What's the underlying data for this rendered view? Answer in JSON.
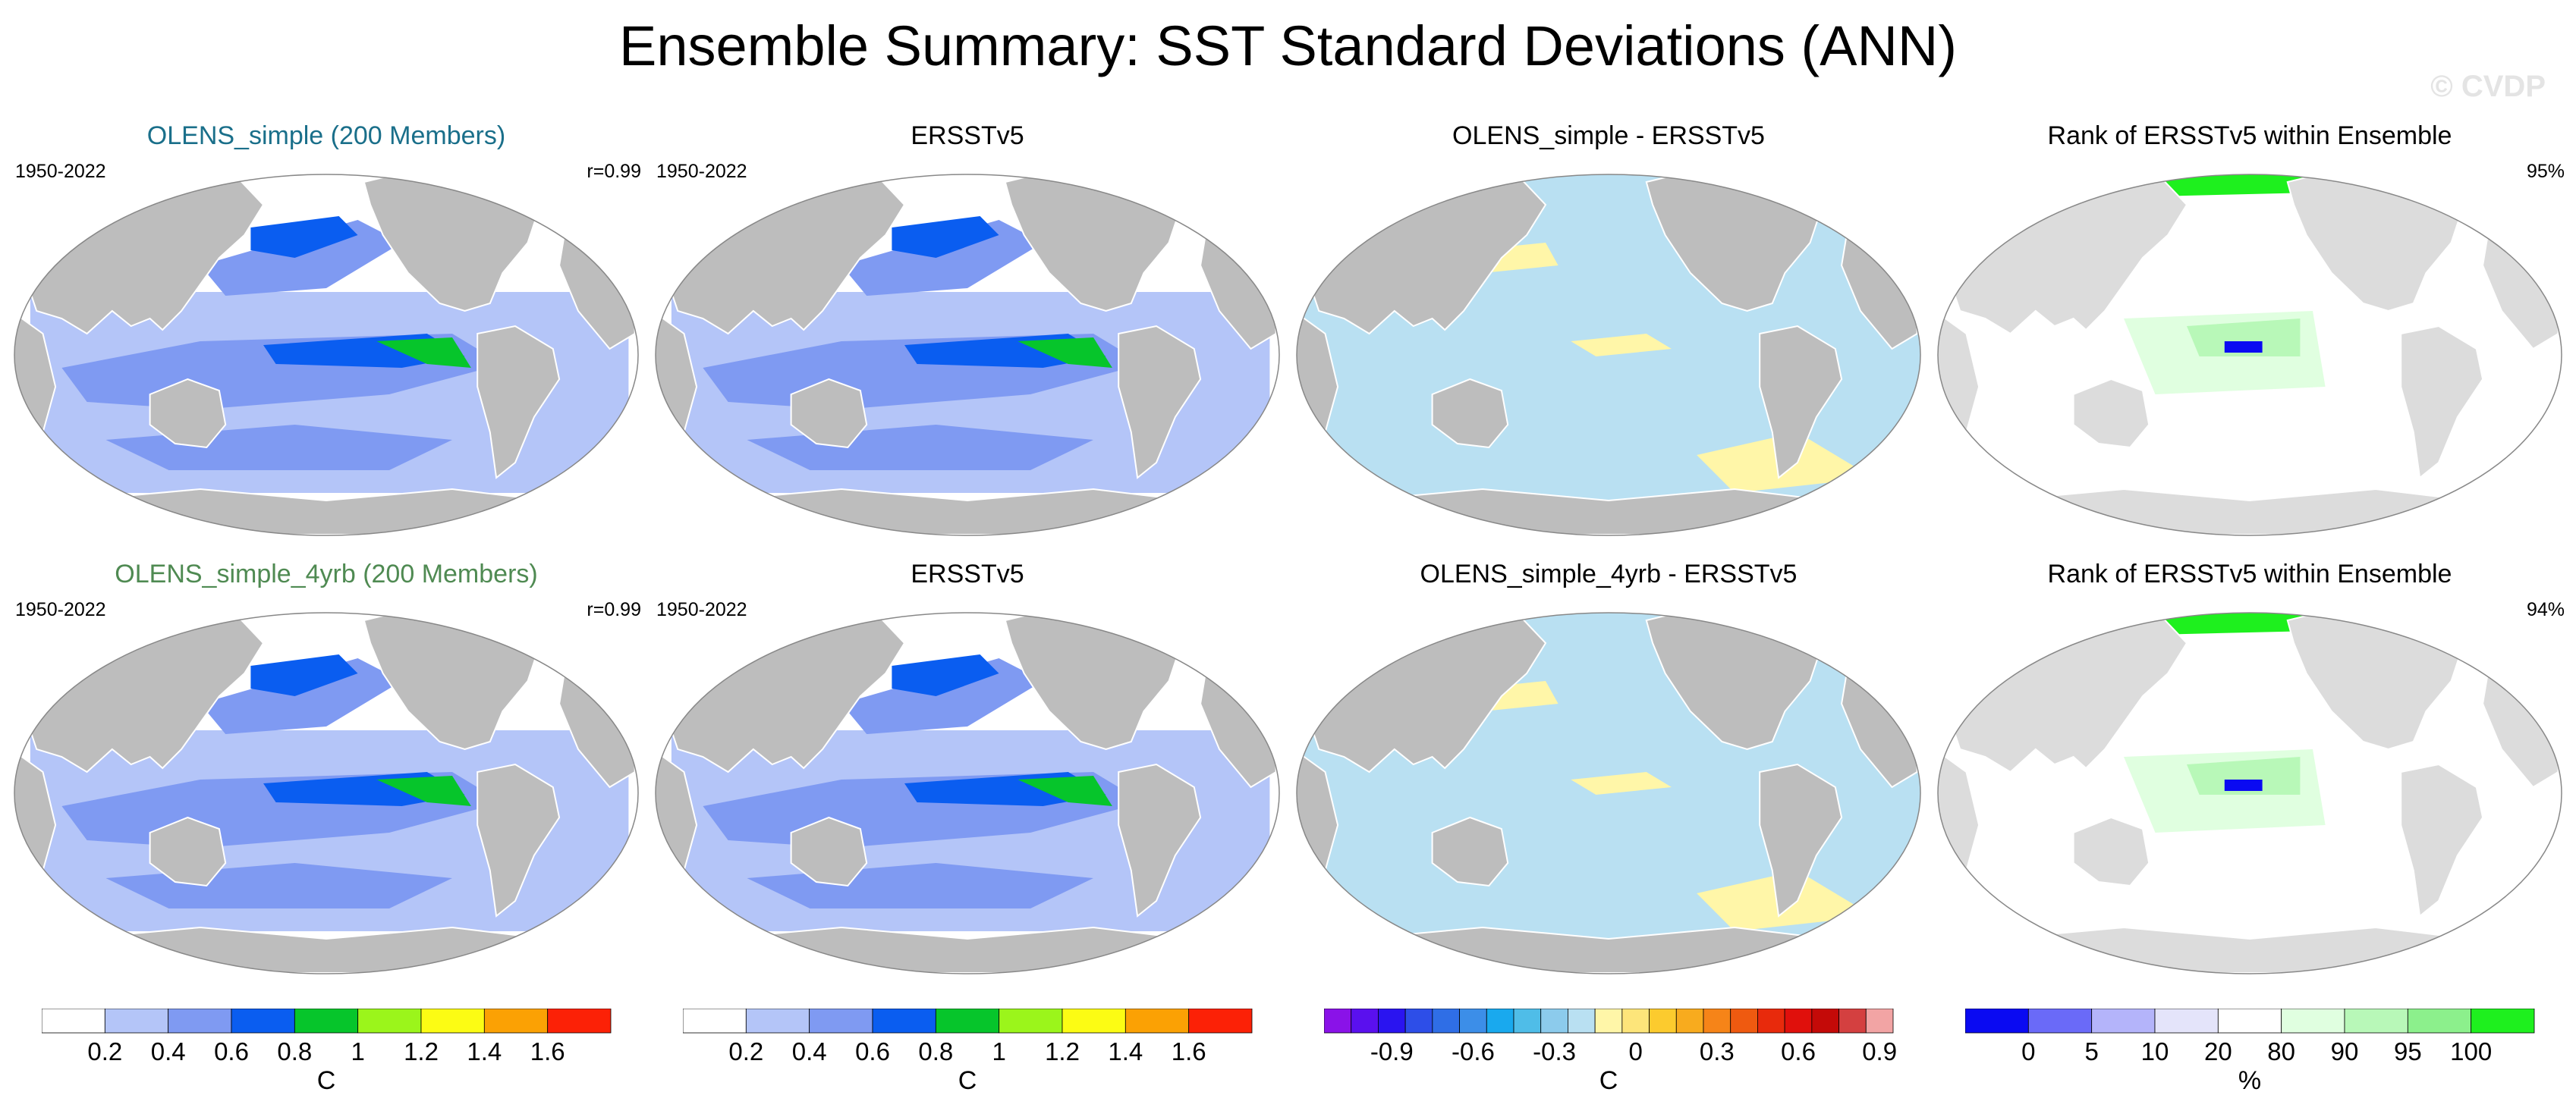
{
  "title": "Ensemble Summary: SST Standard Deviations (ANN)",
  "watermark": "© CVDP",
  "colors": {
    "land": "#bdbdbd",
    "coast": "#ffffff",
    "outline": "#888888",
    "ensemble_title_1": "#1a6f8a",
    "ensemble_title_2": "#4f8a52"
  },
  "rows": [
    {
      "panels": [
        {
          "title": "OLENS_simple (200 Members)",
          "left_note": "1950-2022",
          "right_note": "r=0.99",
          "kind": "std"
        },
        {
          "title": "ERSSTv5",
          "left_note": "1950-2022",
          "right_note": "",
          "kind": "std"
        },
        {
          "title": "OLENS_simple - ERSSTv5",
          "left_note": "",
          "right_note": "",
          "kind": "diff"
        },
        {
          "title": "Rank of ERSSTv5 within Ensemble",
          "left_note": "",
          "right_note": "95%",
          "kind": "rank"
        }
      ]
    },
    {
      "panels": [
        {
          "title": "OLENS_simple_4yrb (200 Members)",
          "left_note": "1950-2022",
          "right_note": "r=0.99",
          "kind": "std"
        },
        {
          "title": "ERSSTv5",
          "left_note": "1950-2022",
          "right_note": "",
          "kind": "std"
        },
        {
          "title": "OLENS_simple_4yrb - ERSSTv5",
          "left_note": "",
          "right_note": "",
          "kind": "diff"
        },
        {
          "title": "Rank of ERSSTv5 within Ensemble",
          "left_note": "",
          "right_note": "94%",
          "kind": "rank"
        }
      ]
    }
  ],
  "chart_data": [
    {
      "type": "heatmap",
      "name": "std_colorbar",
      "unit_label": "C",
      "levels": [
        0.2,
        0.4,
        0.6,
        0.8,
        1,
        1.2,
        1.4,
        1.6
      ],
      "tick_labels": [
        "0.2",
        "0.4",
        "0.6",
        "0.8",
        "1",
        "1.2",
        "1.4",
        "1.6"
      ],
      "colors": [
        "#ffffff",
        "#b4c5f8",
        "#7f9af2",
        "#0a5df0",
        "#06c52b",
        "#9bf51b",
        "#fcfc14",
        "#fba104",
        "#fc2106"
      ]
    },
    {
      "type": "heatmap",
      "name": "diff_colorbar",
      "unit_label": "C",
      "tick_values": [
        -0.9,
        -0.6,
        -0.3,
        0,
        0.3,
        0.6,
        0.9
      ],
      "tick_labels": [
        "-0.9",
        "-0.6",
        "-0.3",
        "0",
        "0.3",
        "0.6",
        "0.9"
      ],
      "tick_box_index": [
        2,
        5,
        8,
        11,
        14,
        17,
        20
      ],
      "colors": [
        "#8a12e8",
        "#5a10ee",
        "#2a14f0",
        "#2d4ee8",
        "#2f6ee6",
        "#3c8ee8",
        "#19a9ee",
        "#4fbde8",
        "#8ccbec",
        "#b9e0f2",
        "#fff6a8",
        "#fde57a",
        "#fccb2e",
        "#f8ab1e",
        "#f68418",
        "#ef5a10",
        "#e82a0c",
        "#e0100c",
        "#c40a08",
        "#d44040",
        "#f2a4a4"
      ]
    },
    {
      "type": "heatmap",
      "name": "rank_colorbar",
      "unit_label": "%",
      "levels": [
        0,
        5,
        10,
        20,
        80,
        90,
        95,
        100
      ],
      "tick_labels": [
        "0",
        "5",
        "10",
        "20",
        "80",
        "90",
        "95",
        "100"
      ],
      "colors": [
        "#0a0af2",
        "#6a6af8",
        "#b4b4fa",
        "#e4e4fa",
        "#ffffff",
        "#e0ffe0",
        "#b8f8b8",
        "#8cf08c",
        "#1ef01e"
      ]
    }
  ]
}
